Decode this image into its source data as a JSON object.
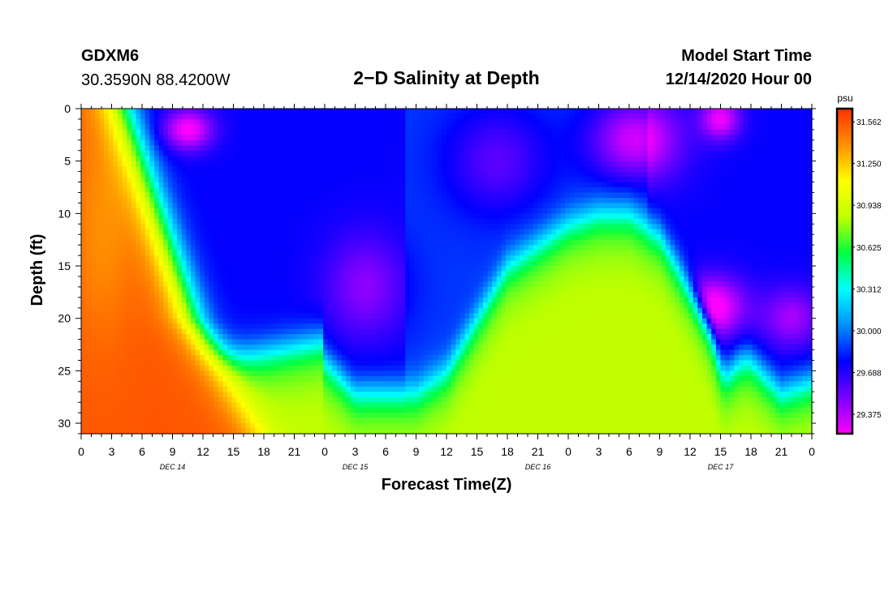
{
  "header": {
    "station": "GDXM6",
    "location": "30.3590N 88.4200W",
    "title": "2−D Salinity at Depth",
    "start_label": "Model Start Time",
    "start_value": "12/14/2020 Hour 00"
  },
  "chart_data": {
    "type": "heatmap",
    "title": "2−D Salinity at Depth",
    "xlabel": "Forecast Time(Z)",
    "ylabel": "Depth (ft)",
    "x_range_hours": [
      0,
      72
    ],
    "x_ticks": [
      {
        "h": 0,
        "label": "0"
      },
      {
        "h": 3,
        "label": "3"
      },
      {
        "h": 6,
        "label": "6"
      },
      {
        "h": 9,
        "label": "9"
      },
      {
        "h": 12,
        "label": "12"
      },
      {
        "h": 15,
        "label": "15"
      },
      {
        "h": 18,
        "label": "18"
      },
      {
        "h": 21,
        "label": "21"
      },
      {
        "h": 24,
        "label": "0"
      },
      {
        "h": 27,
        "label": "3"
      },
      {
        "h": 30,
        "label": "6"
      },
      {
        "h": 33,
        "label": "9"
      },
      {
        "h": 36,
        "label": "12"
      },
      {
        "h": 39,
        "label": "15"
      },
      {
        "h": 42,
        "label": "18"
      },
      {
        "h": 45,
        "label": "21"
      },
      {
        "h": 48,
        "label": "0"
      },
      {
        "h": 51,
        "label": "3"
      },
      {
        "h": 54,
        "label": "6"
      },
      {
        "h": 57,
        "label": "9"
      },
      {
        "h": 60,
        "label": "12"
      },
      {
        "h": 63,
        "label": "15"
      },
      {
        "h": 66,
        "label": "18"
      },
      {
        "h": 69,
        "label": "21"
      },
      {
        "h": 72,
        "label": "0"
      }
    ],
    "day_labels": [
      {
        "h": 9,
        "label": "DEC 14"
      },
      {
        "h": 27,
        "label": "DEC 15"
      },
      {
        "h": 45,
        "label": "DEC 16"
      },
      {
        "h": 63,
        "label": "DEC 17"
      }
    ],
    "y_range_ft": [
      0,
      31
    ],
    "y_ticks": [
      0,
      5,
      10,
      15,
      20,
      25,
      30
    ],
    "colorbar": {
      "unit": "psu",
      "range": [
        29.23,
        31.66
      ],
      "tick_labels": [
        "31.562",
        "31.250",
        "30.938",
        "30.625",
        "30.312",
        "30.000",
        "29.688",
        "29.375"
      ],
      "tick_values": [
        31.562,
        31.25,
        30.938,
        30.625,
        30.312,
        30.0,
        29.688,
        29.375
      ]
    },
    "palette": [
      "#ff00ff",
      "#7a00ff",
      "#0000ff",
      "#0090ff",
      "#00ffff",
      "#00ff40",
      "#bfff00",
      "#ffff00",
      "#ff9000",
      "#ff3000"
    ],
    "columns": [
      {
        "h": 0,
        "frontL": 11,
        "frontR": 41
      },
      {
        "h": 6,
        "frontL": 12,
        "frontR": 40
      },
      {
        "h": 9,
        "frontL": 13,
        "frontR": 38
      },
      {
        "h": 12,
        "frontL": 14,
        "frontR": 36
      },
      {
        "h": 15,
        "frontL": 15,
        "frontR": 33
      },
      {
        "h": 18,
        "frontL": 16,
        "frontR": 30
      },
      {
        "h": 21,
        "frontL": 17,
        "frontR": 27
      },
      {
        "h": 24,
        "frontL": 18,
        "frontR": 25
      }
    ],
    "bottom_fresh": [
      {
        "h": 24,
        "t": 24
      },
      {
        "h": 27,
        "t": 27
      },
      {
        "h": 33,
        "t": 27
      },
      {
        "h": 36,
        "t": 25
      },
      {
        "h": 39,
        "t": 20
      },
      {
        "h": 42,
        "t": 15
      },
      {
        "h": 45,
        "t": 13
      },
      {
        "h": 48,
        "t": 11
      },
      {
        "h": 51,
        "t": 10
      },
      {
        "h": 54,
        "t": 10
      },
      {
        "h": 57,
        "t": 12
      },
      {
        "h": 60,
        "t": 17
      },
      {
        "h": 63,
        "t": 23
      },
      {
        "h": 66,
        "t": 24
      },
      {
        "h": 69,
        "t": 27
      },
      {
        "h": 72,
        "t": 26
      }
    ]
  }
}
